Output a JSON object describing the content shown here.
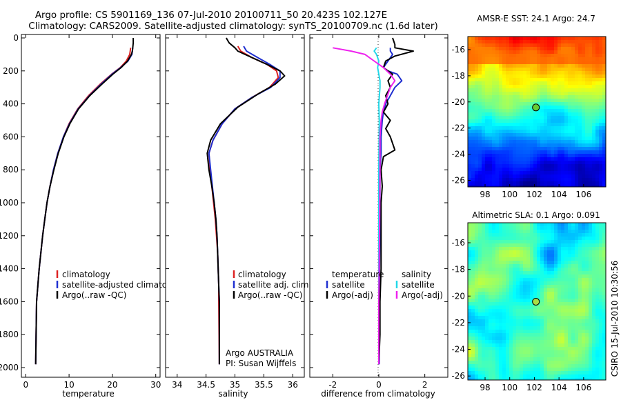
{
  "figure": {
    "title_line1": "Argo profile: CS 5901169_136 07-Jul-2010 20100711_50 20.423S 102.127E",
    "title_line2": "Climatology: CARS2009. Satellite-adjusted climatology: synTS_20100709.nc (1.6d later)",
    "side_credit": "CSIRO 15-Jul-2010 10:30:56",
    "annotation_line1": "Argo AUSTRALIA",
    "annotation_line2": "PI: Susan Wijffels"
  },
  "colors": {
    "climatology": "#dd2222",
    "satellite": "#1f2fd0",
    "argo": "#000000",
    "salinity_satellite": "#22d8e8",
    "salinity_argo": "#ee22ee"
  },
  "chart_data": [
    {
      "type": "line",
      "xlabel": "temperature",
      "ylabel": "",
      "xlim": [
        -1,
        31
      ],
      "ylim": [
        2050,
        0
      ],
      "xticks": [
        0,
        10,
        20,
        30
      ],
      "yticks": [
        0,
        200,
        400,
        600,
        800,
        1000,
        1200,
        1400,
        1600,
        1800,
        2000
      ],
      "legend": [
        "climatology",
        "satellite-adjusted climatology",
        "Argo(..raw -QC)"
      ],
      "legend_position": "lower-right",
      "series": [
        {
          "name": "climatology",
          "color": "#dd2222",
          "x": [
            24.2,
            24.1,
            24.0,
            23.2,
            21.8,
            19.8,
            17.2,
            14.5,
            12.0,
            10.0,
            8.7,
            7.4,
            6.4,
            5.6,
            4.9,
            4.4,
            3.9,
            3.5,
            3.1,
            2.8,
            2.5,
            2.3
          ],
          "y": [
            60,
            80,
            100,
            140,
            180,
            220,
            280,
            350,
            430,
            520,
            600,
            700,
            800,
            900,
            1000,
            1100,
            1200,
            1300,
            1400,
            1500,
            1600,
            1980
          ]
        },
        {
          "name": "satellite-adjusted climatology",
          "color": "#1f2fd0",
          "x": [
            24.7,
            24.6,
            24.5,
            23.6,
            21.9,
            19.9,
            17.4,
            14.7,
            12.1,
            10.1,
            8.7,
            7.4,
            6.4,
            5.6,
            4.9,
            4.4,
            3.9,
            3.5,
            3.1,
            2.8,
            2.5,
            2.3
          ],
          "y": [
            60,
            80,
            100,
            140,
            180,
            220,
            280,
            350,
            430,
            520,
            600,
            700,
            800,
            900,
            1000,
            1100,
            1200,
            1300,
            1400,
            1500,
            1600,
            1980
          ]
        },
        {
          "name": "Argo(..raw -QC)",
          "color": "#000000",
          "x": [
            24.8,
            24.8,
            24.7,
            24.6,
            24.4,
            23.5,
            22.0,
            20.1,
            17.6,
            14.8,
            12.2,
            10.2,
            8.8,
            7.5,
            6.5,
            5.6,
            4.9,
            4.4,
            3.9,
            3.5,
            3.1,
            2.8,
            2.5,
            2.3
          ],
          "y": [
            0,
            30,
            60,
            80,
            100,
            140,
            180,
            220,
            280,
            350,
            430,
            520,
            600,
            700,
            800,
            900,
            1000,
            1100,
            1200,
            1300,
            1400,
            1500,
            1600,
            1980
          ]
        }
      ]
    },
    {
      "type": "line",
      "xlabel": "salinity",
      "ylabel": "",
      "xlim": [
        33.8,
        36.2
      ],
      "ylim": [
        2050,
        0
      ],
      "xticks": [
        34,
        34.5,
        35,
        35.5,
        36
      ],
      "legend": [
        "climatology",
        "satellite adj. clim.",
        "Argo(..raw -QC)"
      ],
      "legend_position": "lower-right",
      "series": [
        {
          "name": "climatology",
          "color": "#dd2222",
          "x": [
            35.05,
            35.1,
            35.3,
            35.55,
            35.72,
            35.75,
            35.6,
            35.3,
            35.0,
            34.78,
            34.62,
            34.55,
            34.57,
            34.6,
            34.63,
            34.66,
            34.68,
            34.7,
            34.71,
            34.72,
            34.72,
            34.73
          ],
          "y": [
            50,
            80,
            120,
            160,
            200,
            240,
            300,
            360,
            430,
            520,
            620,
            700,
            800,
            900,
            1000,
            1100,
            1200,
            1300,
            1400,
            1500,
            1600,
            1980
          ]
        },
        {
          "name": "satellite adj. clim.",
          "color": "#1f2fd0",
          "x": [
            35.15,
            35.2,
            35.4,
            35.6,
            35.78,
            35.78,
            35.62,
            35.3,
            35.0,
            34.78,
            34.62,
            34.55,
            34.58,
            34.61,
            34.64,
            34.67,
            34.69,
            34.7,
            34.71,
            34.72,
            34.73,
            34.73
          ],
          "y": [
            50,
            80,
            120,
            160,
            200,
            240,
            300,
            360,
            430,
            520,
            620,
            700,
            800,
            900,
            1000,
            1100,
            1200,
            1300,
            1400,
            1500,
            1600,
            1980
          ]
        },
        {
          "name": "Argo(..raw -QC)",
          "color": "#000000",
          "x": [
            34.85,
            34.9,
            35.0,
            35.05,
            35.3,
            35.55,
            35.78,
            35.86,
            35.7,
            35.4,
            35.05,
            34.75,
            34.58,
            34.52,
            34.55,
            34.6,
            34.64,
            34.67,
            34.69,
            34.7,
            34.71,
            34.72,
            34.73,
            34.73
          ],
          "y": [
            0,
            30,
            60,
            80,
            120,
            160,
            200,
            230,
            280,
            340,
            420,
            520,
            620,
            700,
            800,
            900,
            1000,
            1100,
            1200,
            1300,
            1400,
            1500,
            1600,
            1980
          ]
        }
      ]
    },
    {
      "type": "line",
      "xlabel": "difference from climatology",
      "ylabel": "",
      "xlim": [
        -3,
        3
      ],
      "ylim": [
        2050,
        0
      ],
      "xticks": [
        -2,
        0,
        2
      ],
      "legend_groups": [
        {
          "title": "temperature",
          "entries": [
            "satellite",
            "Argo(-adj)"
          ]
        },
        {
          "title": "salinity",
          "entries": [
            "satellite",
            "Argo(-adj)"
          ]
        }
      ],
      "legend_position": "lower-center",
      "series": [
        {
          "name": "temperature satellite",
          "color": "#1f2fd0",
          "x": [
            0.5,
            0.5,
            0.6,
            0.4,
            0.2,
            0.4,
            0.8,
            1.0,
            0.7,
            0.5,
            0.3,
            0.2,
            0.15,
            0.1,
            0.1,
            0.05,
            0.05,
            0.05,
            0.05,
            0.03,
            0.03,
            0.02
          ],
          "y": [
            60,
            80,
            100,
            140,
            180,
            200,
            220,
            260,
            300,
            350,
            400,
            450,
            500,
            600,
            700,
            800,
            900,
            1000,
            1200,
            1400,
            1600,
            1980
          ]
        },
        {
          "name": "temperature Argo(-adj)",
          "color": "#000000",
          "x": [
            0.6,
            0.7,
            0.7,
            1.5,
            0.7,
            0.3,
            0.2,
            0.6,
            0.4,
            0.5,
            0.3,
            0.4,
            0.2,
            0.5,
            0.3,
            0.5,
            0.7,
            0.2,
            0.1,
            0.15,
            0.1,
            0.1,
            0.1,
            0.05,
            0.05,
            0.0
          ],
          "y": [
            0,
            40,
            60,
            80,
            110,
            140,
            180,
            220,
            260,
            300,
            350,
            400,
            450,
            500,
            550,
            600,
            680,
            720,
            800,
            900,
            1000,
            1200,
            1400,
            1600,
            1800,
            1980
          ]
        },
        {
          "name": "salinity satellite",
          "color": "#22d8e8",
          "x": [
            -0.1,
            -0.2,
            -0.1,
            0.0,
            -0.05,
            0.0,
            0.05,
            0.05,
            0.0,
            0.02,
            0.0,
            0.0,
            0.0,
            0.0
          ],
          "y": [
            60,
            80,
            100,
            140,
            180,
            220,
            260,
            300,
            400,
            500,
            800,
            1200,
            1600,
            1980
          ]
        },
        {
          "name": "salinity Argo(-adj)",
          "color": "#ee22ee",
          "x": [
            -2.0,
            -1.2,
            -0.6,
            -0.2,
            0.2,
            0.5,
            0.7,
            0.5,
            0.4,
            0.25,
            0.15,
            0.1,
            0.05,
            0.05,
            0.03,
            0.0,
            0.0
          ],
          "y": [
            60,
            80,
            100,
            140,
            180,
            220,
            260,
            300,
            340,
            400,
            450,
            500,
            600,
            800,
            1200,
            1600,
            1980
          ]
        }
      ]
    },
    {
      "type": "heatmap",
      "title": "AMSR-E SST: 24.1 Argo: 24.7",
      "xlim": [
        96.6,
        107.8
      ],
      "ylim": [
        -26.5,
        -15.0
      ],
      "xticks": [
        98,
        100,
        102,
        104,
        106
      ],
      "yticks": [
        -16,
        -18,
        -20,
        -22,
        -24,
        -26
      ],
      "marker": {
        "lon": 102.127,
        "lat": -20.423
      }
    },
    {
      "type": "heatmap",
      "title": "Altimetric SLA: 0.1 Argo: 0.091",
      "xlim": [
        96.6,
        107.8
      ],
      "ylim": [
        -26.3,
        -14.5
      ],
      "xticks": [
        98,
        100,
        102,
        104,
        106
      ],
      "yticks": [
        -16,
        -18,
        -20,
        -22,
        -24,
        -26
      ],
      "marker": {
        "lon": 102.127,
        "lat": -20.423
      }
    }
  ]
}
